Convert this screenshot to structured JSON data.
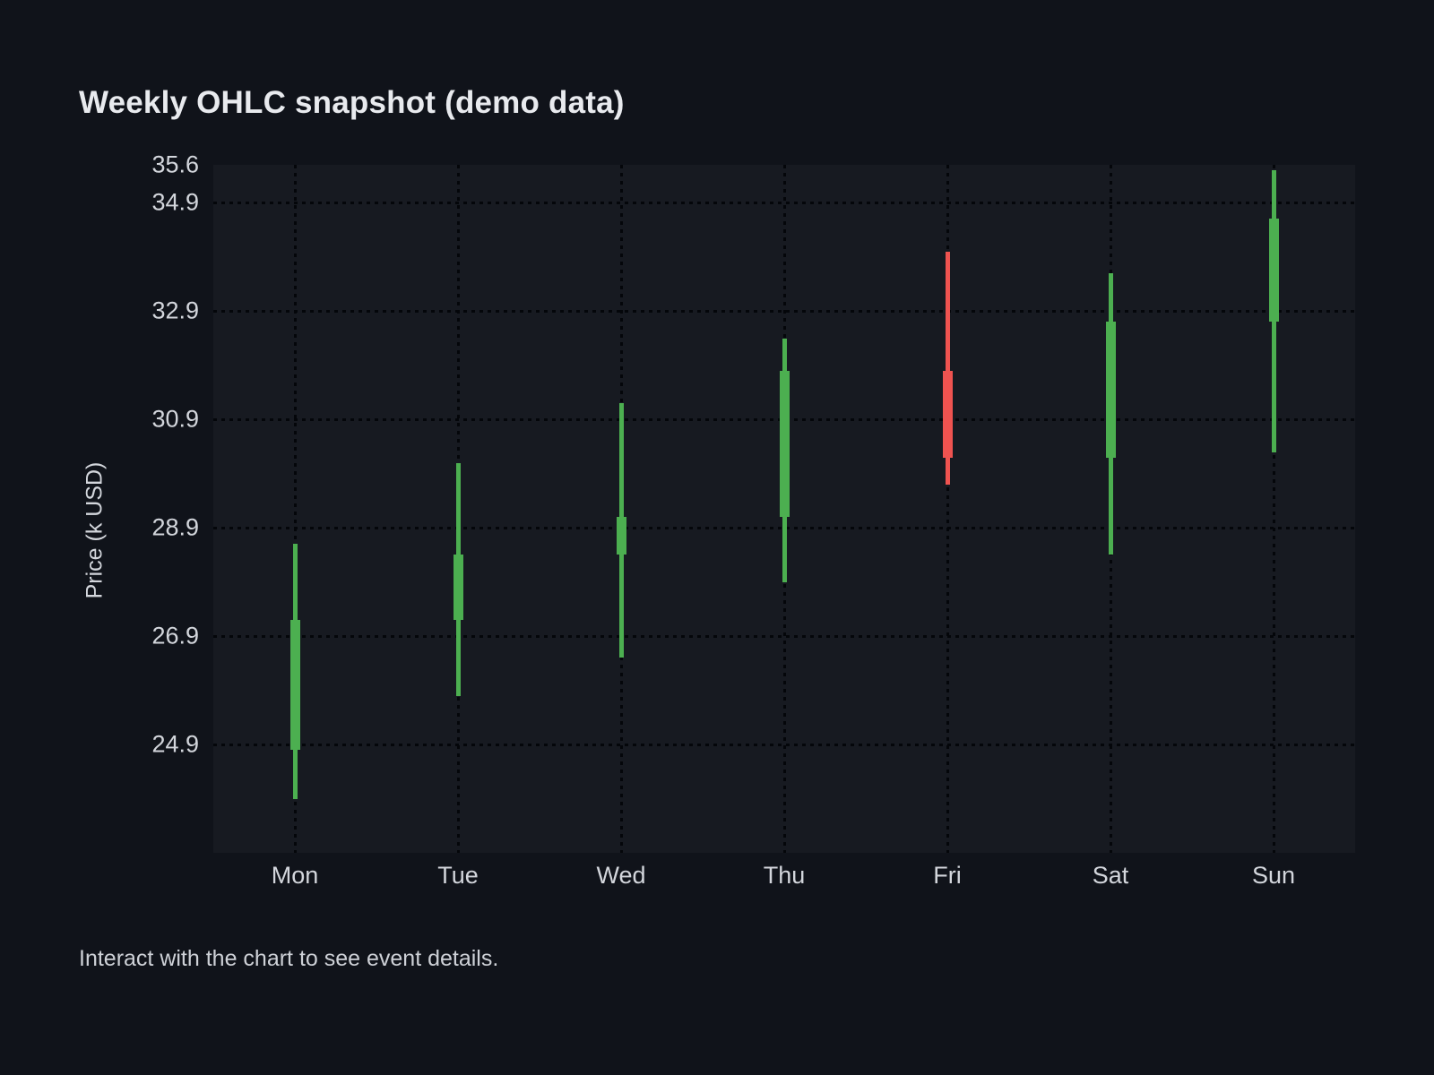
{
  "footer": {
    "hint": "Interact with the chart to see event details."
  },
  "chart_data": {
    "type": "candlestick",
    "title": "Weekly OHLC snapshot (demo data)",
    "xlabel": "",
    "ylabel": "Price (k USD)",
    "categories": [
      "Mon",
      "Tue",
      "Wed",
      "Thu",
      "Fri",
      "Sat",
      "Sun"
    ],
    "series": [
      {
        "name": "Weekly OHLC",
        "points": [
          {
            "category": "Mon",
            "open": 24.8,
            "high": 28.6,
            "low": 23.9,
            "close": 27.2,
            "direction": "up"
          },
          {
            "category": "Tue",
            "open": 27.2,
            "high": 30.1,
            "low": 25.8,
            "close": 28.4,
            "direction": "up"
          },
          {
            "category": "Wed",
            "open": 28.4,
            "high": 31.2,
            "low": 26.5,
            "close": 29.1,
            "direction": "up"
          },
          {
            "category": "Thu",
            "open": 29.1,
            "high": 32.4,
            "low": 27.9,
            "close": 31.8,
            "direction": "up"
          },
          {
            "category": "Fri",
            "open": 31.8,
            "high": 34.0,
            "low": 29.7,
            "close": 30.2,
            "direction": "down"
          },
          {
            "category": "Sat",
            "open": 30.2,
            "high": 33.6,
            "low": 28.4,
            "close": 32.7,
            "direction": "up"
          },
          {
            "category": "Sun",
            "open": 32.7,
            "high": 35.5,
            "low": 30.3,
            "close": 34.6,
            "direction": "up"
          }
        ]
      }
    ],
    "y_axis": {
      "min": 22.9,
      "max": 35.6,
      "ticks": [
        {
          "value": 35.6,
          "label": "35.6",
          "gridline": false
        },
        {
          "value": 34.9,
          "label": "34.9",
          "gridline": true
        },
        {
          "value": 32.9,
          "label": "32.9",
          "gridline": true
        },
        {
          "value": 30.9,
          "label": "30.9",
          "gridline": true
        },
        {
          "value": 28.9,
          "label": "28.9",
          "gridline": true
        },
        {
          "value": 26.9,
          "label": "26.9",
          "gridline": true
        },
        {
          "value": 24.9,
          "label": "24.9",
          "gridline": true
        }
      ]
    },
    "grid": {
      "horizontal": true,
      "vertical": true,
      "style": "dotted"
    },
    "legend": {
      "visible": false
    },
    "colors": {
      "bullish": "#4caf50",
      "bearish": "#ef5350",
      "page_background": "#10131a",
      "plot_background": "#171a21",
      "grid": "#04060a",
      "axis_text": "#d3d6dc",
      "title_text": "#e8eaee",
      "hint_text": "#ced1d7"
    }
  }
}
